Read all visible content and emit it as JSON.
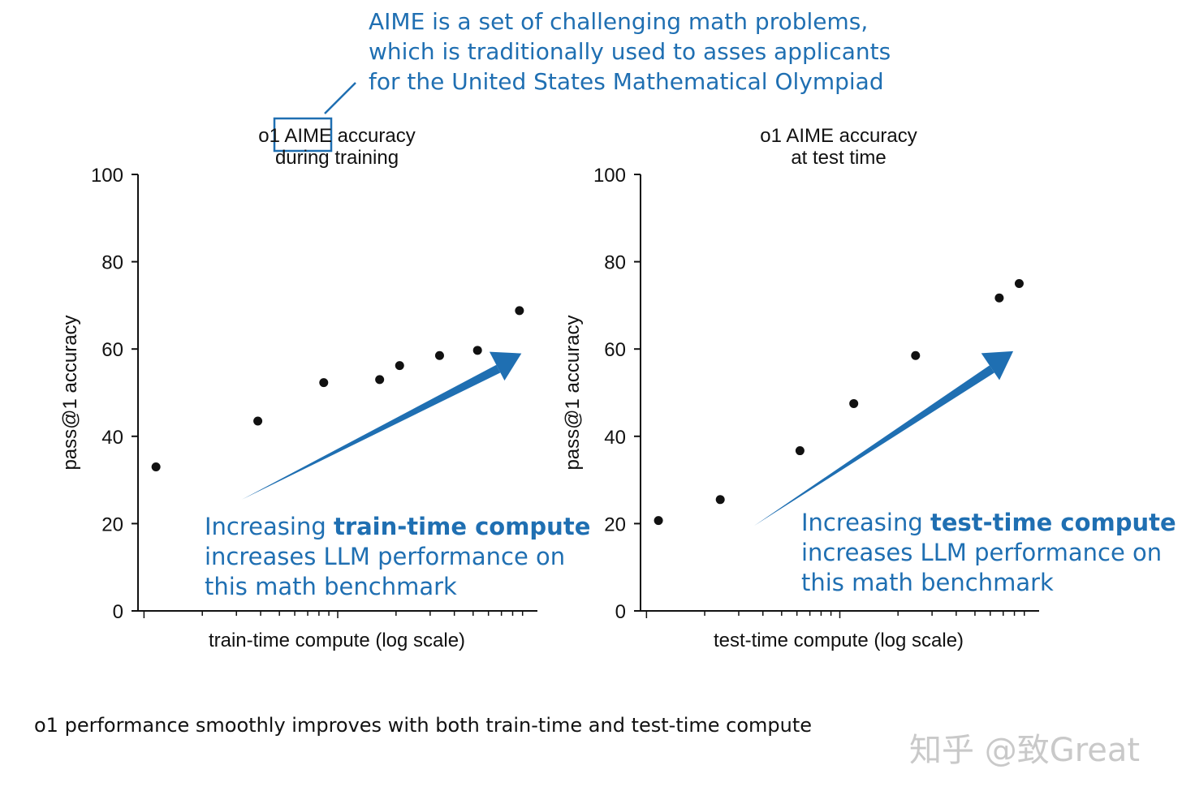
{
  "annotation": {
    "lines": [
      "AIME is a set of challenging math problems,",
      "which is traditionally used to asses applicants",
      "for the  United States Mathematical Olympiad"
    ],
    "color": "#1f6fb2"
  },
  "chart_data": [
    {
      "type": "scatter",
      "title_lines": [
        "o1 AIME accuracy",
        "during training"
      ],
      "xlabel": "train-time compute (log scale)",
      "ylabel": "pass@1 accuracy",
      "ylim": [
        0,
        100
      ],
      "yticks": [
        "0",
        "20",
        "40",
        "60",
        "80",
        "100"
      ],
      "x_scale": "log (unlabeled)",
      "points": [
        {
          "x": 0.045,
          "y": 33
        },
        {
          "x": 0.3,
          "y": 43.5
        },
        {
          "x": 0.465,
          "y": 52.3
        },
        {
          "x": 0.605,
          "y": 53
        },
        {
          "x": 0.655,
          "y": 56.2
        },
        {
          "x": 0.755,
          "y": 58.5
        },
        {
          "x": 0.85,
          "y": 59.7
        },
        {
          "x": 0.955,
          "y": 68.8
        }
      ],
      "trend_arrow": {
        "from": [
          0.26,
          25.5
        ],
        "to": [
          0.96,
          59
        ]
      },
      "callout": {
        "prefix": "Increasing ",
        "bold": "train-time compute",
        "line2": "increases LLM performance on",
        "line3": "this math benchmark"
      }
    },
    {
      "type": "scatter",
      "title_lines": [
        "o1 AIME accuracy",
        "at test time"
      ],
      "xlabel": "test-time compute (log scale)",
      "ylabel": "pass@1 accuracy",
      "ylim": [
        0,
        100
      ],
      "yticks": [
        "0",
        "20",
        "40",
        "60",
        "80",
        "100"
      ],
      "x_scale": "log (unlabeled)",
      "points": [
        {
          "x": 0.045,
          "y": 20.7
        },
        {
          "x": 0.2,
          "y": 25.5
        },
        {
          "x": 0.4,
          "y": 36.7
        },
        {
          "x": 0.535,
          "y": 47.5
        },
        {
          "x": 0.69,
          "y": 58.5
        },
        {
          "x": 0.9,
          "y": 71.7
        },
        {
          "x": 0.95,
          "y": 75
        }
      ],
      "trend_arrow": {
        "from": [
          0.285,
          19.5
        ],
        "to": [
          0.935,
          59.5
        ]
      },
      "callout": {
        "prefix": "Increasing ",
        "bold": "test-time compute",
        "line2": "increases LLM performance on",
        "line3": "this math benchmark"
      }
    }
  ],
  "caption": "o1 performance smoothly improves with both train-time and test-time compute",
  "watermark": "知乎 @致Great"
}
